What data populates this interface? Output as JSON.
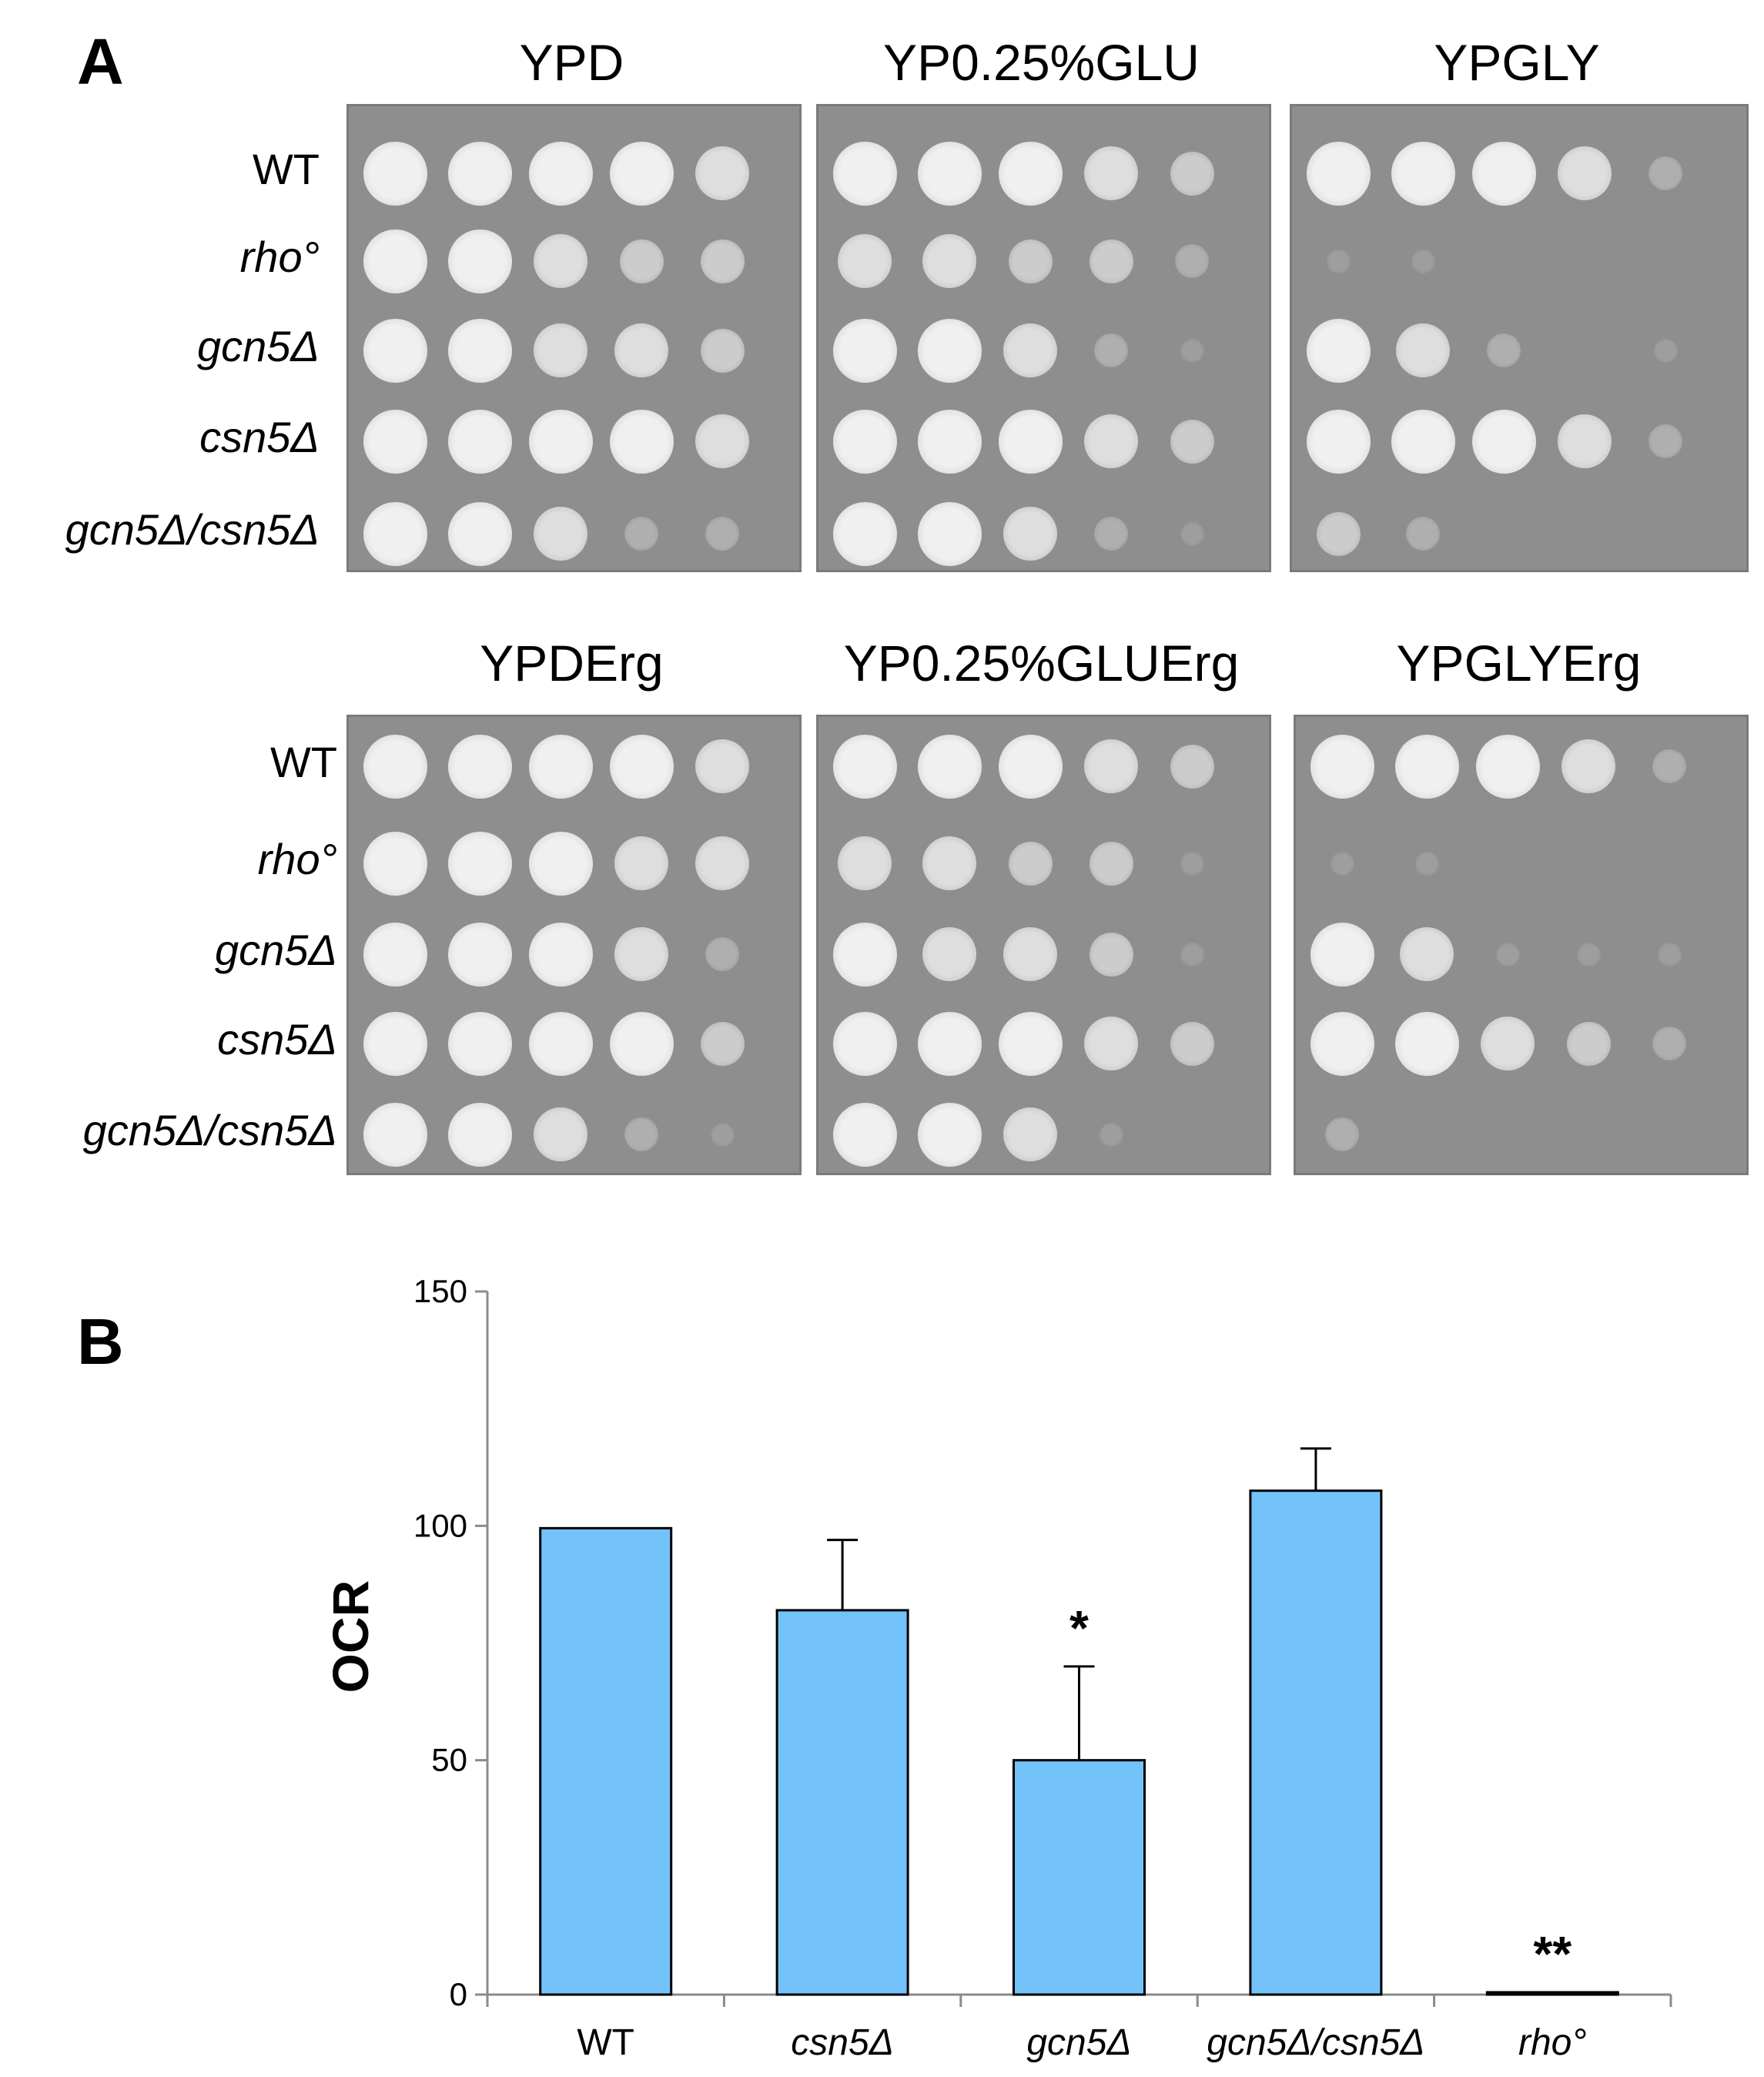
{
  "panel_a": {
    "letter": "A",
    "strains_top": [
      {
        "label": "WT",
        "italic": false
      },
      {
        "label": "rho°",
        "italic": true
      },
      {
        "label": "gcn5Δ",
        "italic": true
      },
      {
        "label": "csn5Δ",
        "italic": true
      },
      {
        "label": "gcn5Δ/csn5Δ",
        "italic": true
      }
    ],
    "strains_bottom": [
      {
        "label": "WT",
        "italic": false
      },
      {
        "label": "rho°",
        "italic": true
      },
      {
        "label": "gcn5Δ",
        "italic": true
      },
      {
        "label": "csn5Δ",
        "italic": true
      },
      {
        "label": "gcn5Δ/csn5Δ",
        "italic": true
      }
    ],
    "conditions_top": [
      "YPD",
      "YP0.25%GLU",
      "YPGLY"
    ],
    "conditions_bottom": [
      "YPDErg",
      "YP0.25%GLUErg",
      "YPGLYErg"
    ],
    "growth_top": [
      [
        [
          5,
          5,
          5,
          5,
          4
        ],
        [
          5,
          5,
          4,
          3,
          3
        ],
        [
          5,
          5,
          4,
          4,
          3
        ],
        [
          5,
          5,
          5,
          5,
          4
        ],
        [
          5,
          5,
          4,
          2,
          2
        ]
      ],
      [
        [
          5,
          5,
          5,
          4,
          3
        ],
        [
          4,
          4,
          3,
          3,
          2
        ],
        [
          5,
          5,
          4,
          2,
          1
        ],
        [
          5,
          5,
          5,
          4,
          3
        ],
        [
          5,
          5,
          4,
          2,
          1
        ]
      ],
      [
        [
          5,
          5,
          5,
          4,
          2
        ],
        [
          1,
          1,
          0,
          0,
          0
        ],
        [
          5,
          4,
          2,
          0,
          1
        ],
        [
          5,
          5,
          5,
          4,
          2
        ],
        [
          3,
          2,
          0,
          0,
          0
        ]
      ]
    ],
    "growth_bottom": [
      [
        [
          5,
          5,
          5,
          5,
          4
        ],
        [
          5,
          5,
          5,
          4,
          4
        ],
        [
          5,
          5,
          5,
          4,
          2
        ],
        [
          5,
          5,
          5,
          5,
          3
        ],
        [
          5,
          5,
          4,
          2,
          1
        ]
      ],
      [
        [
          5,
          5,
          5,
          4,
          3
        ],
        [
          4,
          4,
          3,
          3,
          1
        ],
        [
          5,
          4,
          4,
          3,
          1
        ],
        [
          5,
          5,
          5,
          4,
          3
        ],
        [
          5,
          5,
          4,
          1,
          0
        ]
      ],
      [
        [
          5,
          5,
          5,
          4,
          2
        ],
        [
          1,
          1,
          0,
          0,
          0
        ],
        [
          5,
          4,
          1,
          1,
          1
        ],
        [
          5,
          5,
          4,
          3,
          2
        ],
        [
          2,
          0,
          0,
          0,
          0
        ]
      ]
    ]
  },
  "panel_b": {
    "letter": "B",
    "chart_data": {
      "type": "bar",
      "categories": [
        "WT",
        "csn5Δ",
        "gcn5Δ",
        "gcn5Δ/csn5Δ",
        "rho°"
      ],
      "categories_italic": [
        false,
        true,
        true,
        true,
        true
      ],
      "values": [
        99.5,
        82,
        50,
        107.5,
        0.5
      ],
      "error_plus": [
        0,
        15,
        20,
        9,
        0
      ],
      "significance": [
        "",
        "",
        "*",
        "",
        "**"
      ],
      "ylabel": "OCR",
      "xlabel": "",
      "ylim": [
        0,
        150
      ],
      "yticks": [
        0,
        50,
        100,
        150
      ],
      "bar_color": "#74c2fa",
      "grid": false
    }
  }
}
